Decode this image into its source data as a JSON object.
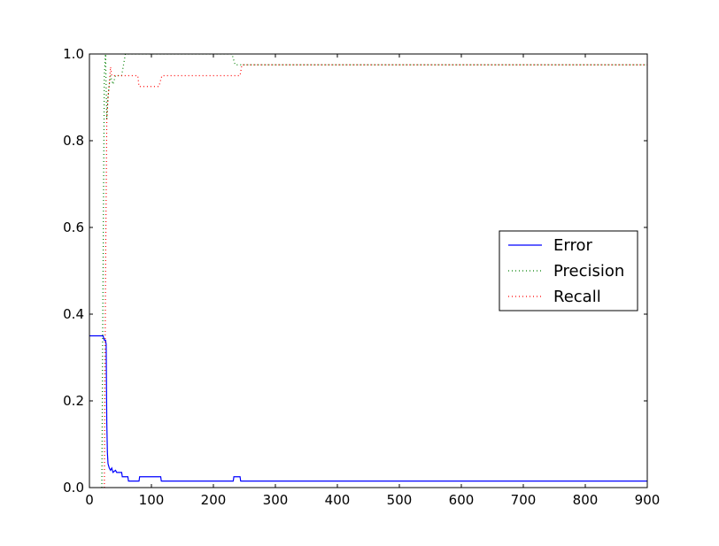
{
  "chart_data": {
    "type": "line",
    "title": "",
    "xlabel": "",
    "ylabel": "",
    "xlim": [
      0,
      900
    ],
    "ylim": [
      0,
      1.0
    ],
    "xticks": [
      0,
      100,
      200,
      300,
      400,
      500,
      600,
      700,
      800,
      900
    ],
    "xtick_labels": [
      "0",
      "100",
      "200",
      "300",
      "400",
      "500",
      "600",
      "700",
      "800",
      "900"
    ],
    "yticks": [
      0.0,
      0.2,
      0.4,
      0.6,
      0.8,
      1.0
    ],
    "ytick_labels": [
      "0.0",
      "0.2",
      "0.4",
      "0.6",
      "0.8",
      "1.0"
    ],
    "grid": false,
    "legend_position": "center-right",
    "series": [
      {
        "name": "Error",
        "color": "#0000ff",
        "style": "solid",
        "points": [
          [
            0,
            0.35
          ],
          [
            22,
            0.35
          ],
          [
            24,
            0.34
          ],
          [
            26,
            0.34
          ],
          [
            27,
            0.33
          ],
          [
            28,
            0.15
          ],
          [
            29,
            0.08
          ],
          [
            30,
            0.055
          ],
          [
            32,
            0.045
          ],
          [
            34,
            0.04
          ],
          [
            36,
            0.045
          ],
          [
            38,
            0.035
          ],
          [
            42,
            0.04
          ],
          [
            44,
            0.035
          ],
          [
            52,
            0.035
          ],
          [
            53,
            0.025
          ],
          [
            62,
            0.025
          ],
          [
            63,
            0.015
          ],
          [
            80,
            0.015
          ],
          [
            81,
            0.025
          ],
          [
            115,
            0.025
          ],
          [
            116,
            0.015
          ],
          [
            232,
            0.015
          ],
          [
            233,
            0.025
          ],
          [
            243,
            0.025
          ],
          [
            244,
            0.015
          ],
          [
            900,
            0.015
          ]
        ]
      },
      {
        "name": "Precision",
        "color": "#008000",
        "style": "dotted",
        "points": [
          [
            20,
            0.0
          ],
          [
            22,
            0.5
          ],
          [
            24,
            0.95
          ],
          [
            26,
            1.0
          ],
          [
            28,
            0.85
          ],
          [
            30,
            0.9
          ],
          [
            32,
            0.93
          ],
          [
            34,
            0.95
          ],
          [
            38,
            0.93
          ],
          [
            42,
            0.95
          ],
          [
            52,
            0.95
          ],
          [
            55,
            0.975
          ],
          [
            58,
            1.0
          ],
          [
            230,
            1.0
          ],
          [
            235,
            0.975
          ],
          [
            900,
            0.975
          ]
        ]
      },
      {
        "name": "Recall",
        "color": "#ff0000",
        "style": "dotted",
        "points": [
          [
            24,
            0.0
          ],
          [
            26,
            0.5
          ],
          [
            28,
            0.85
          ],
          [
            30,
            0.9
          ],
          [
            32,
            0.93
          ],
          [
            34,
            0.97
          ],
          [
            36,
            0.95
          ],
          [
            78,
            0.95
          ],
          [
            80,
            0.925
          ],
          [
            112,
            0.925
          ],
          [
            117,
            0.95
          ],
          [
            243,
            0.95
          ],
          [
            246,
            0.975
          ],
          [
            900,
            0.975
          ]
        ]
      }
    ]
  }
}
